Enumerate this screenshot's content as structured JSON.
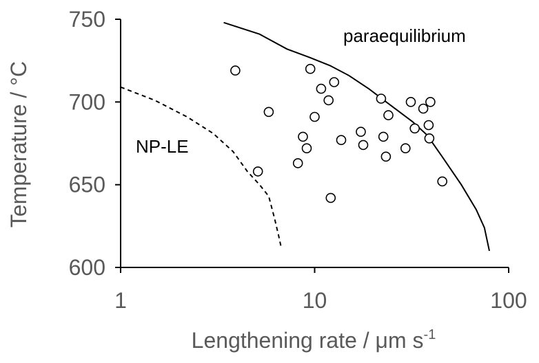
{
  "chart_data": {
    "type": "scatter",
    "xlabel": "Lengthening rate / μm s",
    "xlabel_superscript": "-1",
    "ylabel": "Temperature / °C",
    "x_scale": "log",
    "xlim": [
      1,
      100
    ],
    "ylim": [
      600,
      750
    ],
    "x_ticks": [
      1,
      10,
      100
    ],
    "y_ticks": [
      600,
      650,
      700,
      750
    ],
    "x_tick_labels": [
      "1",
      "10",
      "100"
    ],
    "y_tick_labels": [
      "600",
      "650",
      "700",
      "750"
    ],
    "grid": false,
    "annotations": [
      "paraequilibrium",
      "NP-LE"
    ],
    "points": [
      {
        "x": 3.9,
        "y": 719
      },
      {
        "x": 5.1,
        "y": 658
      },
      {
        "x": 5.8,
        "y": 694
      },
      {
        "x": 8.2,
        "y": 663
      },
      {
        "x": 8.7,
        "y": 679
      },
      {
        "x": 9.1,
        "y": 672
      },
      {
        "x": 9.5,
        "y": 720
      },
      {
        "x": 10.0,
        "y": 691
      },
      {
        "x": 10.8,
        "y": 708
      },
      {
        "x": 11.8,
        "y": 701
      },
      {
        "x": 12.1,
        "y": 642
      },
      {
        "x": 12.6,
        "y": 712
      },
      {
        "x": 13.7,
        "y": 677
      },
      {
        "x": 17.3,
        "y": 682
      },
      {
        "x": 17.8,
        "y": 674
      },
      {
        "x": 22.0,
        "y": 702
      },
      {
        "x": 22.6,
        "y": 679
      },
      {
        "x": 23.3,
        "y": 667
      },
      {
        "x": 24.0,
        "y": 692
      },
      {
        "x": 29.4,
        "y": 672
      },
      {
        "x": 31.3,
        "y": 700
      },
      {
        "x": 32.8,
        "y": 684
      },
      {
        "x": 36.3,
        "y": 696
      },
      {
        "x": 38.7,
        "y": 686
      },
      {
        "x": 39.0,
        "y": 678
      },
      {
        "x": 39.5,
        "y": 700
      },
      {
        "x": 45.5,
        "y": 652
      }
    ],
    "lines": [
      {
        "style": "solid",
        "points": [
          [
            3.4,
            748
          ],
          [
            5.2,
            741
          ],
          [
            7.2,
            732
          ],
          [
            9.4,
            727
          ],
          [
            12.0,
            722
          ],
          [
            15.0,
            716
          ],
          [
            19.0,
            708
          ],
          [
            24.0,
            699
          ],
          [
            32.0,
            688
          ],
          [
            38.0,
            680
          ],
          [
            46.0,
            666
          ],
          [
            57.0,
            650
          ],
          [
            68.0,
            635
          ],
          [
            75.0,
            624
          ],
          [
            79.5,
            610
          ]
        ]
      },
      {
        "style": "dashed",
        "points": [
          [
            1.0,
            709
          ],
          [
            1.5,
            701
          ],
          [
            2.2,
            691
          ],
          [
            3.0,
            681
          ],
          [
            3.8,
            670
          ],
          [
            4.5,
            658
          ],
          [
            5.2,
            650
          ],
          [
            5.8,
            643
          ],
          [
            6.2,
            630
          ],
          [
            6.5,
            620
          ],
          [
            6.7,
            613
          ]
        ]
      }
    ]
  }
}
